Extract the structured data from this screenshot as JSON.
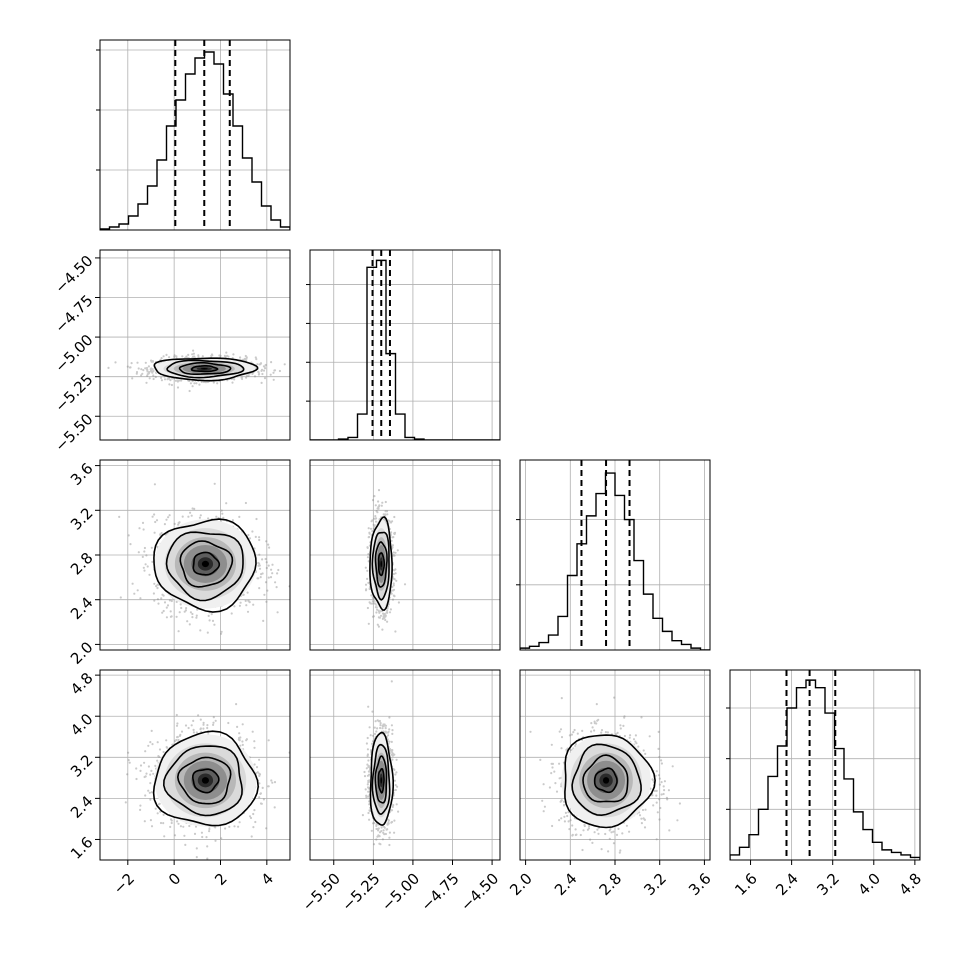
{
  "chart_data": {
    "type": "corner",
    "title": "",
    "grid": true,
    "parameters": [
      {
        "name": "",
        "range": [
          -3.2,
          5.0
        ],
        "ticks": [
          -2,
          0,
          2,
          4
        ],
        "tick_labels": [
          "−2",
          "0",
          "2",
          "4"
        ],
        "mean": 1.35,
        "sigma": 1.1,
        "quantiles": [
          0.05,
          1.3,
          2.4
        ]
      },
      {
        "name": "",
        "range": [
          -5.65,
          -4.45
        ],
        "ticks": [
          -5.5,
          -5.25,
          -5.0,
          -4.75,
          -4.5
        ],
        "tick_labels": [
          "−5.50",
          "−5.25",
          "−5.00",
          "−4.75",
          "−4.50"
        ],
        "mean": -5.2,
        "sigma": 0.035,
        "quantiles": [
          -5.255,
          -5.2,
          -5.145
        ]
      },
      {
        "name": "",
        "range": [
          1.95,
          3.65
        ],
        "ticks": [
          2.0,
          2.4,
          2.8,
          3.2,
          3.6
        ],
        "tick_labels": [
          "2.0",
          "2.4",
          "2.8",
          "3.2",
          "3.6"
        ],
        "mean": 2.72,
        "sigma": 0.2,
        "quantiles": [
          2.5,
          2.72,
          2.93
        ]
      },
      {
        "name": "",
        "range": [
          1.2,
          4.9
        ],
        "ticks": [
          1.6,
          2.4,
          3.2,
          4.0,
          4.8
        ],
        "tick_labels": [
          "1.6",
          "2.4",
          "3.2",
          "4.0",
          "4.8"
        ],
        "mean": 2.75,
        "sigma": 0.45,
        "quantiles": [
          2.3,
          2.75,
          3.25
        ]
      }
    ],
    "histograms": [
      {
        "param": 0,
        "bin_edges": [
          -3.2,
          -2.79,
          -2.38,
          -1.97,
          -1.56,
          -1.15,
          -0.74,
          -0.33,
          0.08,
          0.49,
          0.9,
          1.31,
          1.72,
          2.13,
          2.54,
          2.95,
          3.36,
          3.77,
          4.18,
          4.59,
          5.0
        ],
        "counts": [
          0.5,
          1.5,
          3,
          7,
          13,
          22,
          35,
          52,
          65,
          78,
          86,
          89,
          83,
          68,
          52,
          36,
          24,
          12,
          5,
          1.5
        ],
        "y_ticks": [
          30,
          60,
          90
        ],
        "y_max": 95
      },
      {
        "param": 1,
        "bin_edges": [
          -5.65,
          -5.59,
          -5.53,
          -5.47,
          -5.41,
          -5.35,
          -5.29,
          -5.23,
          -5.17,
          -5.11,
          -5.05,
          -4.99,
          -4.93,
          -4.87,
          -4.81,
          -4.75,
          -4.69,
          -4.63,
          -4.57,
          -4.51,
          -4.45
        ],
        "counts": [
          0,
          0,
          0,
          1,
          3,
          30,
          200,
          208,
          100,
          30,
          3,
          1,
          0,
          0,
          0,
          0,
          0,
          0,
          0,
          0
        ],
        "y_ticks": [
          45,
          90,
          135,
          180
        ],
        "y_max": 220
      },
      {
        "param": 2,
        "bin_edges": [
          1.95,
          2.035,
          2.12,
          2.205,
          2.29,
          2.375,
          2.46,
          2.545,
          2.63,
          2.715,
          2.8,
          2.885,
          2.97,
          3.055,
          3.14,
          3.225,
          3.31,
          3.395,
          3.48,
          3.565,
          3.65
        ],
        "counts": [
          1,
          2,
          4,
          8,
          18,
          40,
          57,
          72,
          84,
          95,
          83,
          70,
          48,
          30,
          17,
          10,
          5,
          3,
          1,
          0
        ],
        "y_ticks": [
          35,
          70
        ],
        "y_max": 102
      },
      {
        "param": 3,
        "bin_edges": [
          1.2,
          1.385,
          1.57,
          1.755,
          1.94,
          2.125,
          2.31,
          2.495,
          2.68,
          2.865,
          3.05,
          3.235,
          3.42,
          3.605,
          3.79,
          3.975,
          4.16,
          4.345,
          4.53,
          4.715,
          4.9
        ],
        "counts": [
          2,
          5,
          10,
          20,
          33,
          45,
          60,
          68,
          71,
          68,
          58,
          44,
          32,
          19,
          12,
          7,
          4,
          3,
          2,
          1
        ],
        "y_ticks": [
          20,
          40,
          60
        ],
        "y_max": 75
      }
    ],
    "joint_panels": [
      {
        "x_param": 0,
        "y_param": 1,
        "center": [
          1.3,
          -5.2
        ],
        "sigmas": [
          1.1,
          0.035
        ],
        "rotation": 0
      },
      {
        "x_param": 0,
        "y_param": 2,
        "center": [
          1.35,
          2.72
        ],
        "sigmas": [
          1.1,
          0.2
        ],
        "rotation": 0
      },
      {
        "x_param": 1,
        "y_param": 2,
        "center": [
          -5.2,
          2.72
        ],
        "sigmas": [
          0.035,
          0.2
        ],
        "rotation": 0
      },
      {
        "x_param": 0,
        "y_param": 3,
        "center": [
          1.35,
          2.75
        ],
        "sigmas": [
          1.1,
          0.45
        ],
        "rotation": 0
      },
      {
        "x_param": 1,
        "y_param": 3,
        "center": [
          -5.2,
          2.75
        ],
        "sigmas": [
          0.035,
          0.45
        ],
        "rotation": 0
      },
      {
        "x_param": 2,
        "y_param": 3,
        "center": [
          2.72,
          2.75
        ],
        "sigmas": [
          0.2,
          0.45
        ],
        "rotation": 0
      }
    ],
    "contour_levels_sigma": [
      0.5,
      1.0,
      1.5,
      2.0
    ]
  }
}
